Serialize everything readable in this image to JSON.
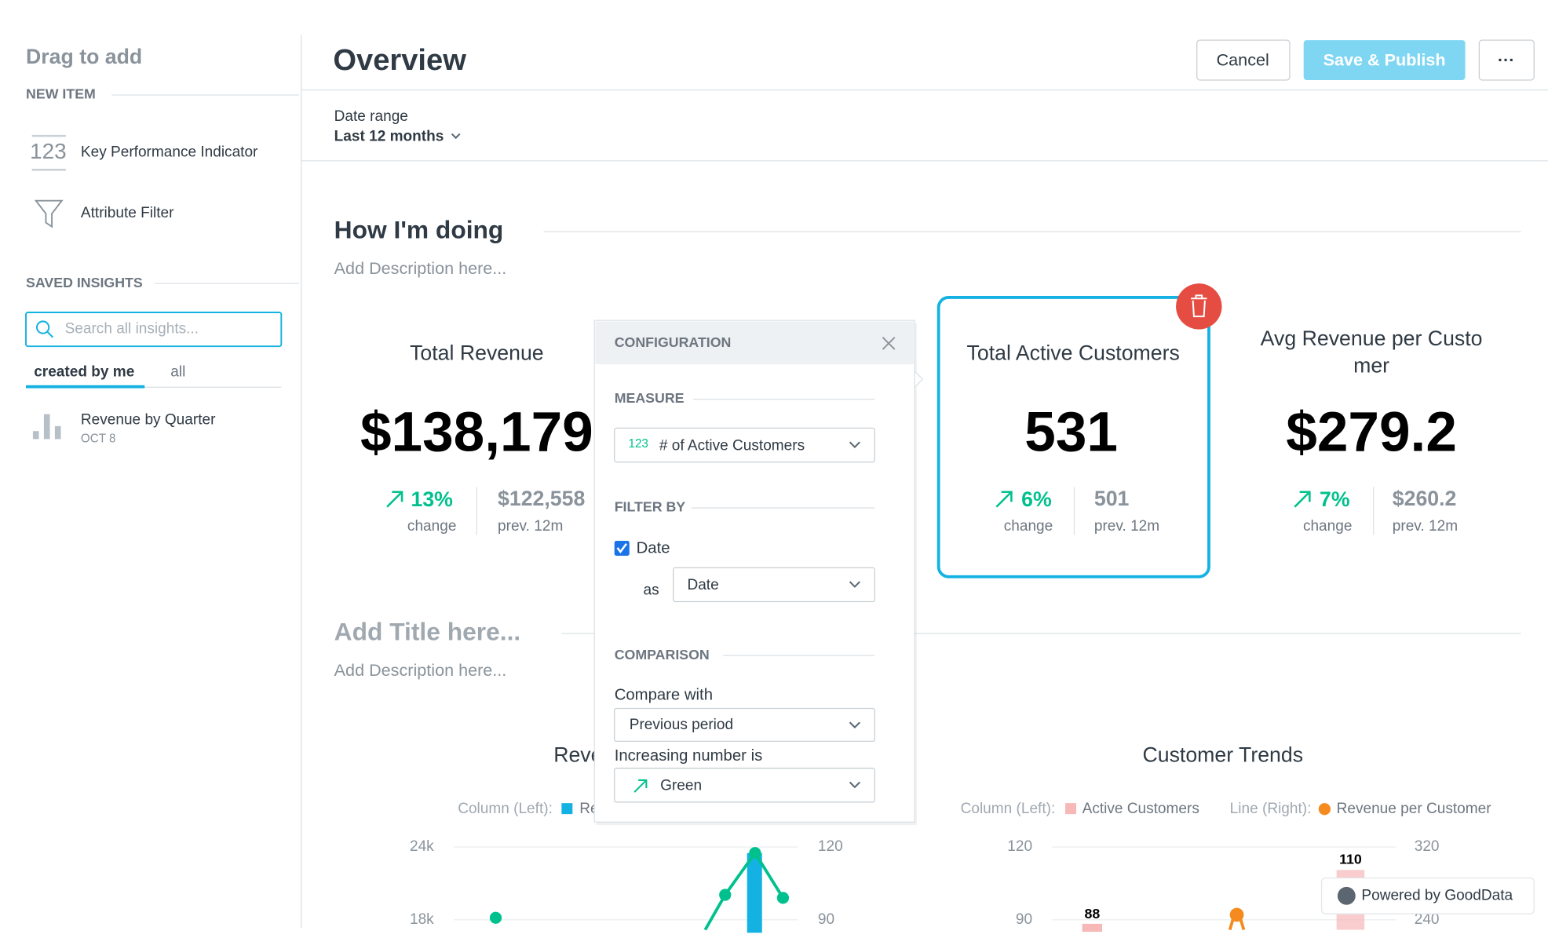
{
  "sidebar": {
    "title": "Drag to add",
    "new_item": "NEW ITEM",
    "items": [
      {
        "icon": "123",
        "label": "Key Performance Indicator"
      },
      {
        "label": "Attribute Filter"
      }
    ],
    "saved_insights": "SAVED INSIGHTS",
    "search_placeholder": "Search all insights...",
    "tabs": [
      "created by me",
      "all"
    ],
    "insights": [
      {
        "name": "Revenue by Quarter",
        "date": "OCT 8"
      }
    ]
  },
  "header": {
    "title": "Overview",
    "buttons": [
      "Cancel",
      "Save & Publish",
      "···"
    ]
  },
  "filter": {
    "label": "Date range",
    "value": "Last 12 months"
  },
  "sections": [
    {
      "title": "How I'm doing",
      "description": "Add Description here..."
    },
    {
      "title": "Add Title here...",
      "description": "Add Description here..."
    }
  ],
  "kpis": [
    {
      "title": "Total Revenue",
      "value": "$138,179",
      "change": "13%",
      "change_label": "change",
      "prev": "$122,558",
      "prev_label": "prev. 12m"
    },
    {
      "title": "Total Active Customers",
      "value": "531",
      "change": "6%",
      "change_label": "change",
      "prev": "501",
      "prev_label": "prev. 12m"
    },
    {
      "title": "Avg Revenue per Customer",
      "value": "$279.2",
      "change": "7%",
      "change_label": "change",
      "prev": "$260.2",
      "prev_label": "prev. 12m"
    }
  ],
  "config": {
    "title": "CONFIGURATION",
    "measure_label": "MEASURE",
    "measure_icon": "123",
    "measure": "# of Active Customers",
    "filter_by": "FILTER BY",
    "date_checkbox": "Date",
    "as": "as",
    "date_dimension": "Date",
    "comparison": "COMPARISON",
    "compare_with_label": "Compare with",
    "compare_with": "Previous period",
    "increasing_label": "Increasing number is",
    "increasing": "Green"
  },
  "charts": [
    {
      "title": "Reve",
      "legend": [
        "Column (Left):",
        "Re"
      ],
      "left_ticks": [
        "24k",
        "18k"
      ],
      "right_ticks": [
        "120",
        "90"
      ]
    },
    {
      "title": "Customer Trends",
      "legend": [
        "Column (Left):",
        "Active Customers",
        "Line (Right):",
        "Revenue per Customer"
      ],
      "left_ticks": [
        "120",
        "90"
      ],
      "right_ticks": [
        "320",
        "240"
      ],
      "data_labels": [
        "110",
        "88"
      ]
    }
  ],
  "badge": "Powered by GoodData"
}
